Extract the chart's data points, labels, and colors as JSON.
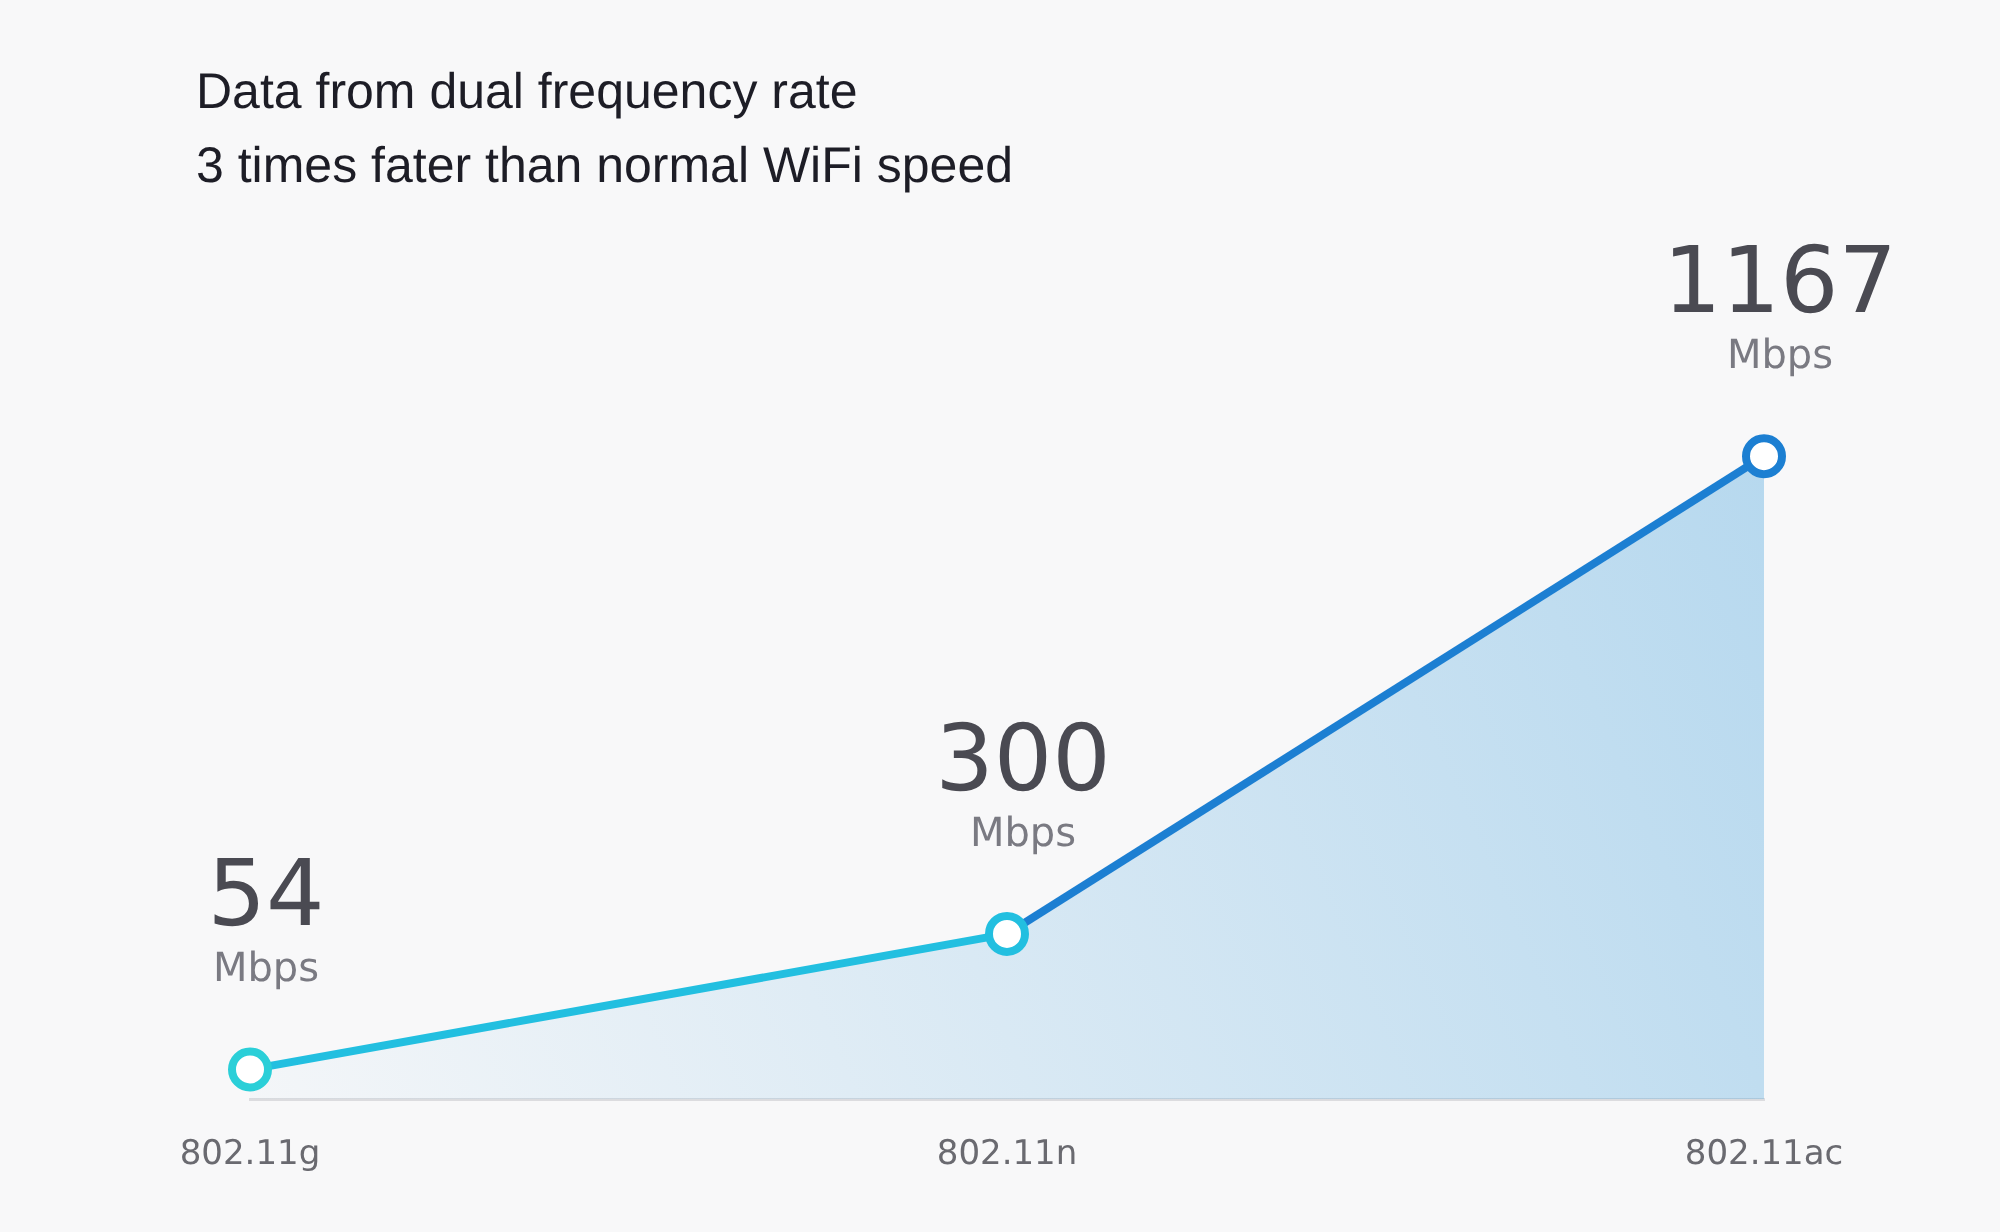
{
  "chart_data": {
    "type": "area",
    "title": "Data from dual frequency rate",
    "subtitle": "3 times fater than normal WiFi speed",
    "categories": [
      "802.11g",
      "802.11n",
      "802.11ac"
    ],
    "series": [
      {
        "color": "#1e8fd6",
        "colors": [
          "#2bcfd8",
          "#22bfe0",
          "#1c7fd2"
        ],
        "values": [
          54,
          300,
          1167
        ],
        "value_labels": [
          "54 Mbps",
          "300 Mbps",
          "1167 Mbps"
        ]
      }
    ],
    "marker": "circle",
    "legend": false,
    "grid": false,
    "tick_labels": "x"
  }
}
